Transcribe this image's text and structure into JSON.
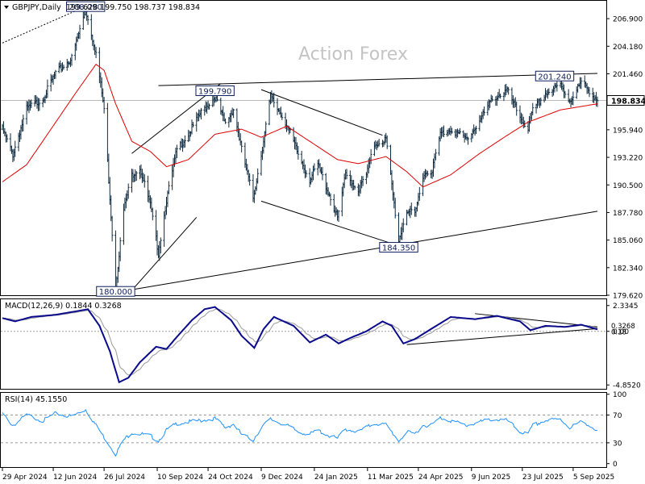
{
  "chart_data": [
    {
      "type": "candlestick",
      "header": {
        "symbol": "GBPJPY",
        "timeframe": "Daily",
        "open": 199.628,
        "high": 199.75,
        "low": 198.737,
        "close": 198.834,
        "text": "GBPJPY,Daily  199.628 199.750 198.737 198.834"
      },
      "watermark": "Action Forex",
      "y_axis": {
        "range": [
          179.62,
          208.66
        ],
        "ticks": [
          {
            "value": 206.9,
            "label": "206.900"
          },
          {
            "value": 204.18,
            "label": "204.180"
          },
          {
            "value": 201.46,
            "label": "201.460"
          },
          {
            "value": 195.94,
            "label": "195.940"
          },
          {
            "value": 193.22,
            "label": "193.220"
          },
          {
            "value": 190.5,
            "label": "190.500"
          },
          {
            "value": 187.78,
            "label": "187.780"
          },
          {
            "value": 185.06,
            "label": "185.060"
          },
          {
            "value": 182.34,
            "label": "182.340"
          },
          {
            "value": 179.62,
            "label": "179.620"
          }
        ],
        "current_price": {
          "value": 198.834,
          "label": "198.834"
        }
      },
      "x_axis": {
        "labels": [
          "29 Apr 2024",
          "12 Jun 2024",
          "26 Jul 2024",
          "10 Sep 2024",
          "24 Oct 2024",
          "9 Dec 2024",
          "24 Jan 2025",
          "11 Mar 2025",
          "24 Apr 2025",
          "9 Jun 2025",
          "23 Jul 2025",
          "5 Sep 2025"
        ]
      },
      "annotations": [
        {
          "label": "208.090",
          "value": 208.09,
          "date": "2024-07-10"
        },
        {
          "label": "199.790",
          "value": 199.79,
          "date": "2024-10-30"
        },
        {
          "label": "201.240",
          "value": 201.24,
          "date": "2025-08-20"
        },
        {
          "label": "184.350",
          "value": 184.35,
          "date": "2025-04-07"
        },
        {
          "label": "180.000",
          "value": 180.0,
          "date": "2024-08-05"
        }
      ],
      "trendlines": [
        {
          "name": "upper-channel",
          "points": [
            [
              "2024-09-11",
              200.3
            ],
            [
              "2025-09-26",
              201.5
            ]
          ]
        },
        {
          "name": "lower-channel",
          "points": [
            [
              "2024-08-05",
              179.9
            ],
            [
              "2025-09-26",
              187.9
            ]
          ]
        },
        {
          "name": "rising-channel-top",
          "points": [
            [
              "2024-08-19",
              193.6
            ],
            [
              "2024-11-04",
              200.5
            ]
          ]
        },
        {
          "name": "rising-channel-bottom",
          "points": [
            [
              "2024-08-19",
              180.1
            ],
            [
              "2024-10-14",
              187.3
            ]
          ]
        },
        {
          "name": "falling-channel-top",
          "points": [
            [
              "2024-12-09",
              199.9
            ],
            [
              "2025-03-24",
              195.4
            ]
          ]
        },
        {
          "name": "falling-channel-bottom",
          "points": [
            [
              "2024-12-09",
              188.9
            ],
            [
              "2025-04-07",
              184.5
            ]
          ]
        },
        {
          "name": "dotted-rise",
          "points": [
            [
              "2024-04-29",
              204.5
            ],
            [
              "2024-07-10",
              208.1
            ]
          ],
          "dotted": true
        }
      ],
      "path_anchors": [
        [
          "2024-04-29",
          196.0
        ],
        [
          "2024-05-08",
          193.5
        ],
        [
          "2024-05-20",
          198.0
        ],
        [
          "2024-06-03",
          199.0
        ],
        [
          "2024-06-14",
          201.5
        ],
        [
          "2024-06-28",
          203.0
        ],
        [
          "2024-07-10",
          207.8
        ],
        [
          "2024-07-19",
          203.5
        ],
        [
          "2024-07-26",
          198.0
        ],
        [
          "2024-08-05",
          180.5
        ],
        [
          "2024-08-12",
          188.0
        ],
        [
          "2024-08-19",
          191.5
        ],
        [
          "2024-08-26",
          192.2
        ],
        [
          "2024-09-04",
          188.5
        ],
        [
          "2024-09-11",
          183.8
        ],
        [
          "2024-09-18",
          189.0
        ],
        [
          "2024-09-27",
          194.0
        ],
        [
          "2024-10-07",
          195.5
        ],
        [
          "2024-10-17",
          197.5
        ],
        [
          "2024-10-30",
          199.2
        ],
        [
          "2024-11-08",
          196.5
        ],
        [
          "2024-11-15",
          198.0
        ],
        [
          "2024-11-22",
          194.0
        ],
        [
          "2024-12-02",
          189.2
        ],
        [
          "2024-12-09",
          193.5
        ],
        [
          "2024-12-17",
          199.2
        ],
        [
          "2024-12-31",
          196.5
        ],
        [
          "2025-01-10",
          193.5
        ],
        [
          "2025-01-20",
          191.0
        ],
        [
          "2025-01-27",
          192.5
        ],
        [
          "2025-02-06",
          189.5
        ],
        [
          "2025-02-13",
          187.2
        ],
        [
          "2025-02-20",
          191.5
        ],
        [
          "2025-03-03",
          190.0
        ],
        [
          "2025-03-10",
          191.5
        ],
        [
          "2025-03-17",
          194.5
        ],
        [
          "2025-03-27",
          195.0
        ],
        [
          "2025-04-07",
          185.0
        ],
        [
          "2025-04-14",
          188.0
        ],
        [
          "2025-04-21",
          187.5
        ],
        [
          "2025-04-28",
          191.5
        ],
        [
          "2025-05-06",
          192.0
        ],
        [
          "2025-05-13",
          195.5
        ],
        [
          "2025-05-22",
          196.0
        ],
        [
          "2025-06-05",
          195.0
        ],
        [
          "2025-06-16",
          196.8
        ],
        [
          "2025-06-27",
          199.0
        ],
        [
          "2025-07-10",
          199.8
        ],
        [
          "2025-07-21",
          197.2
        ],
        [
          "2025-07-28",
          196.0
        ],
        [
          "2025-08-01",
          197.8
        ],
        [
          "2025-08-12",
          199.5
        ],
        [
          "2025-08-25",
          200.3
        ],
        [
          "2025-09-02",
          198.8
        ],
        [
          "2025-09-12",
          200.6
        ],
        [
          "2025-09-19",
          199.8
        ],
        [
          "2025-09-26",
          198.834
        ]
      ],
      "ma_anchors": [
        [
          "2024-04-29",
          190.8
        ],
        [
          "2024-05-20",
          192.5
        ],
        [
          "2024-06-10",
          196.0
        ],
        [
          "2024-07-01",
          199.5
        ],
        [
          "2024-07-19",
          202.4
        ],
        [
          "2024-07-26",
          201.8
        ],
        [
          "2024-08-05",
          198.5
        ],
        [
          "2024-08-19",
          194.8
        ],
        [
          "2024-09-04",
          193.8
        ],
        [
          "2024-09-18",
          192.3
        ],
        [
          "2024-10-07",
          193.0
        ],
        [
          "2024-10-30",
          195.5
        ],
        [
          "2024-11-22",
          196.0
        ],
        [
          "2024-12-09",
          195.2
        ],
        [
          "2024-12-31",
          196.3
        ],
        [
          "2025-01-20",
          194.8
        ],
        [
          "2025-02-13",
          193.0
        ],
        [
          "2025-03-03",
          192.6
        ],
        [
          "2025-03-27",
          193.3
        ],
        [
          "2025-04-14",
          191.8
        ],
        [
          "2025-04-28",
          190.3
        ],
        [
          "2025-05-22",
          191.5
        ],
        [
          "2025-06-16",
          193.6
        ],
        [
          "2025-07-10",
          195.4
        ],
        [
          "2025-07-28",
          196.7
        ],
        [
          "2025-08-25",
          197.9
        ],
        [
          "2025-09-26",
          198.5
        ]
      ],
      "ma_color": "#e00000",
      "bar_color": "#0e2a3f",
      "annotation_color": "#0e1f5e"
    },
    {
      "type": "line",
      "name": "macd",
      "header": "MACD(12,26,9) 0.1844 0.3268",
      "y_axis": {
        "range": [
          -5.2,
          2.9
        ],
        "ticks": [
          {
            "value": 2.3345,
            "label": "2.3345"
          },
          {
            "value": 0.0,
            "label": "0.00"
          },
          {
            "value": -4.852,
            "label": "-4.8520"
          }
        ],
        "current_values": [
          {
            "value": 0.3268,
            "label": "0.3268"
          },
          {
            "value": 0.1844,
            "label": "0.18"
          }
        ]
      },
      "macd_anchors": [
        [
          "2024-04-29",
          1.2
        ],
        [
          "2024-05-10",
          0.9
        ],
        [
          "2024-05-24",
          1.3
        ],
        [
          "2024-06-14",
          1.5
        ],
        [
          "2024-07-01",
          1.8
        ],
        [
          "2024-07-12",
          2.0
        ],
        [
          "2024-07-22",
          0.5
        ],
        [
          "2024-07-31",
          -1.8
        ],
        [
          "2024-08-08",
          -4.6
        ],
        [
          "2024-08-16",
          -4.2
        ],
        [
          "2024-08-26",
          -2.8
        ],
        [
          "2024-09-09",
          -1.4
        ],
        [
          "2024-09-18",
          -1.6
        ],
        [
          "2024-09-27",
          -0.5
        ],
        [
          "2024-10-10",
          1.0
        ],
        [
          "2024-10-21",
          2.0
        ],
        [
          "2024-10-30",
          2.2
        ],
        [
          "2024-11-13",
          1.0
        ],
        [
          "2024-11-22",
          -0.4
        ],
        [
          "2024-12-03",
          -1.5
        ],
        [
          "2024-12-11",
          0.2
        ],
        [
          "2024-12-20",
          1.3
        ],
        [
          "2025-01-06",
          0.5
        ],
        [
          "2025-01-20",
          -1.0
        ],
        [
          "2025-02-03",
          -0.3
        ],
        [
          "2025-02-14",
          -1.1
        ],
        [
          "2025-02-24",
          -0.6
        ],
        [
          "2025-03-10",
          0.0
        ],
        [
          "2025-03-24",
          0.9
        ],
        [
          "2025-04-01",
          0.5
        ],
        [
          "2025-04-11",
          -1.1
        ],
        [
          "2025-04-21",
          -0.7
        ],
        [
          "2025-05-08",
          0.4
        ],
        [
          "2025-05-22",
          1.3
        ],
        [
          "2025-06-12",
          1.1
        ],
        [
          "2025-07-01",
          1.4
        ],
        [
          "2025-07-21",
          0.9
        ],
        [
          "2025-07-30",
          0.1
        ],
        [
          "2025-08-12",
          0.5
        ],
        [
          "2025-08-29",
          0.4
        ],
        [
          "2025-09-12",
          0.6
        ],
        [
          "2025-09-26",
          0.18
        ]
      ],
      "signal_smoothing": 9,
      "macd_color": "#0a0a8c",
      "signal_color": "#9a9a9a",
      "trendlines": [
        {
          "name": "macd-top",
          "points": [
            [
              "2025-06-12",
              1.6
            ],
            [
              "2025-09-26",
              0.4
            ]
          ]
        },
        {
          "name": "macd-bottom",
          "points": [
            [
              "2025-04-14",
              -1.2
            ],
            [
              "2025-09-26",
              0.25
            ]
          ]
        }
      ]
    },
    {
      "type": "line",
      "name": "rsi",
      "header": "RSI(14) 45.1550",
      "y_axis": {
        "range": [
          -5,
          102
        ],
        "ticks": [
          {
            "value": 100,
            "label": "100"
          },
          {
            "value": 70,
            "label": "70"
          },
          {
            "value": 30,
            "label": "30"
          },
          {
            "value": 0,
            "label": "0"
          }
        ]
      },
      "levels": [
        70,
        30
      ],
      "rsi_anchors": [
        [
          "2024-04-29",
          72
        ],
        [
          "2024-05-08",
          55
        ],
        [
          "2024-05-20",
          70
        ],
        [
          "2024-06-03",
          62
        ],
        [
          "2024-06-14",
          72
        ],
        [
          "2024-06-28",
          68
        ],
        [
          "2024-07-10",
          78
        ],
        [
          "2024-07-19",
          55
        ],
        [
          "2024-07-26",
          38
        ],
        [
          "2024-08-05",
          14
        ],
        [
          "2024-08-12",
          34
        ],
        [
          "2024-08-19",
          45
        ],
        [
          "2024-09-04",
          40
        ],
        [
          "2024-09-11",
          33
        ],
        [
          "2024-09-18",
          48
        ],
        [
          "2024-09-27",
          58
        ],
        [
          "2024-10-07",
          60
        ],
        [
          "2024-10-17",
          62
        ],
        [
          "2024-10-30",
          65
        ],
        [
          "2024-11-08",
          52
        ],
        [
          "2024-11-15",
          57
        ],
        [
          "2024-11-22",
          42
        ],
        [
          "2024-12-02",
          34
        ],
        [
          "2024-12-09",
          52
        ],
        [
          "2024-12-17",
          64
        ],
        [
          "2024-12-31",
          55
        ],
        [
          "2025-01-10",
          46
        ],
        [
          "2025-01-20",
          42
        ],
        [
          "2025-01-27",
          48
        ],
        [
          "2025-02-06",
          40
        ],
        [
          "2025-02-13",
          36
        ],
        [
          "2025-02-20",
          50
        ],
        [
          "2025-03-03",
          46
        ],
        [
          "2025-03-10",
          52
        ],
        [
          "2025-03-17",
          58
        ],
        [
          "2025-03-27",
          56
        ],
        [
          "2025-04-07",
          33
        ],
        [
          "2025-04-14",
          45
        ],
        [
          "2025-04-21",
          43
        ],
        [
          "2025-04-28",
          55
        ],
        [
          "2025-05-06",
          56
        ],
        [
          "2025-05-13",
          66
        ],
        [
          "2025-05-22",
          62
        ],
        [
          "2025-06-05",
          55
        ],
        [
          "2025-06-16",
          60
        ],
        [
          "2025-06-27",
          64
        ],
        [
          "2025-07-10",
          62
        ],
        [
          "2025-07-21",
          46
        ],
        [
          "2025-07-28",
          42
        ],
        [
          "2025-08-01",
          55
        ],
        [
          "2025-08-12",
          62
        ],
        [
          "2025-08-25",
          64
        ],
        [
          "2025-09-02",
          52
        ],
        [
          "2025-09-12",
          60
        ],
        [
          "2025-09-19",
          56
        ],
        [
          "2025-09-26",
          45.155
        ]
      ],
      "rsi_color": "#1e90ff",
      "level_color": "#9a9a9a"
    }
  ]
}
